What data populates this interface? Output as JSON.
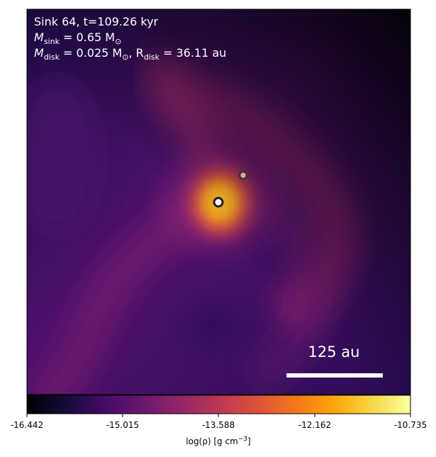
{
  "annotation": {
    "line1": "Sink 64, t=109.26 kyr",
    "line2_prefix": "M",
    "line2_sub": "sink",
    "line2_rest": " = 0.65 M",
    "line2_sun": "⊙",
    "line3_prefix": "M",
    "line3_sub": "disk",
    "line3_mid": " = 0.025 M",
    "line3_sun": "⊙",
    "line3_sep": ", R",
    "line3_sub2": "disk",
    "line3_rest": " = 36.11 au"
  },
  "scale_bar": {
    "label": "125 au"
  },
  "colorbar": {
    "colormap": "inferno",
    "ticks": [
      "-16.442",
      "-15.015",
      "-13.588",
      "-12.162",
      "-10.735"
    ],
    "label_prefix": "log(ρ) [g cm",
    "label_sup": "−3",
    "label_suffix": "]"
  },
  "sinks": [
    {
      "name": "primary-sink",
      "fill": "#ffffff",
      "ring": "#222222"
    },
    {
      "name": "secondary-sink",
      "fill": "#e8a0a0",
      "ring": "#333333"
    }
  ]
}
